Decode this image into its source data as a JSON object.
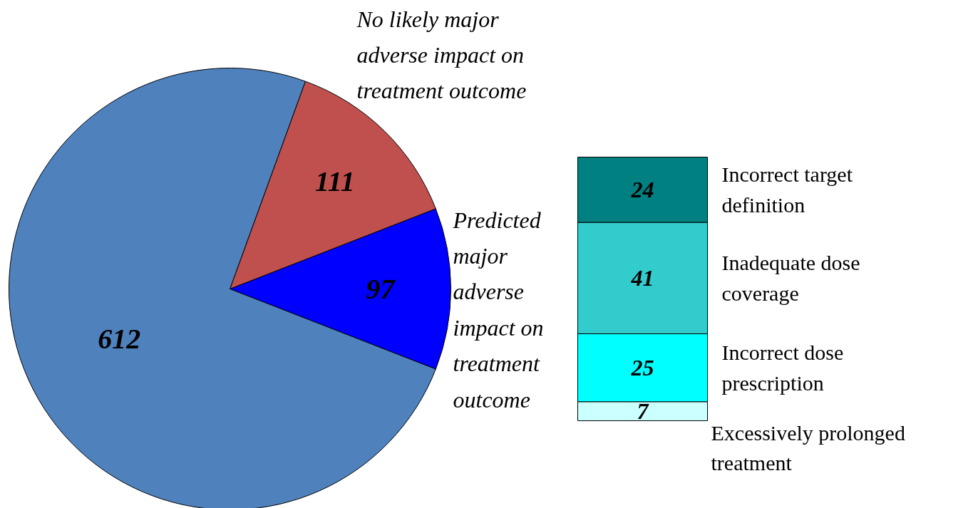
{
  "chart_data": [
    {
      "type": "pie",
      "categories": [
        "Predicted major adverse impact on treatment outcome",
        "No likely major adverse impact on treatment outcome",
        null
      ],
      "values": [
        97,
        111,
        612
      ],
      "colors": [
        "#0000ff",
        "#c0504d",
        "#4f81bd"
      ],
      "data_labels": true
    },
    {
      "type": "bar",
      "stacked": true,
      "categories": [
        null
      ],
      "data_labels": true,
      "series": [
        {
          "name": "Excessively prolonged treatment",
          "color": "#ccffff",
          "values": [
            7
          ]
        },
        {
          "name": "Incorrect dose prescription",
          "color": "#00ffff",
          "values": [
            25
          ]
        },
        {
          "name": "Inadequate dose coverage",
          "color": "#33cccc",
          "values": [
            41
          ]
        },
        {
          "name": "Incorrect target definition",
          "color": "#008080",
          "values": [
            24
          ]
        }
      ]
    }
  ]
}
